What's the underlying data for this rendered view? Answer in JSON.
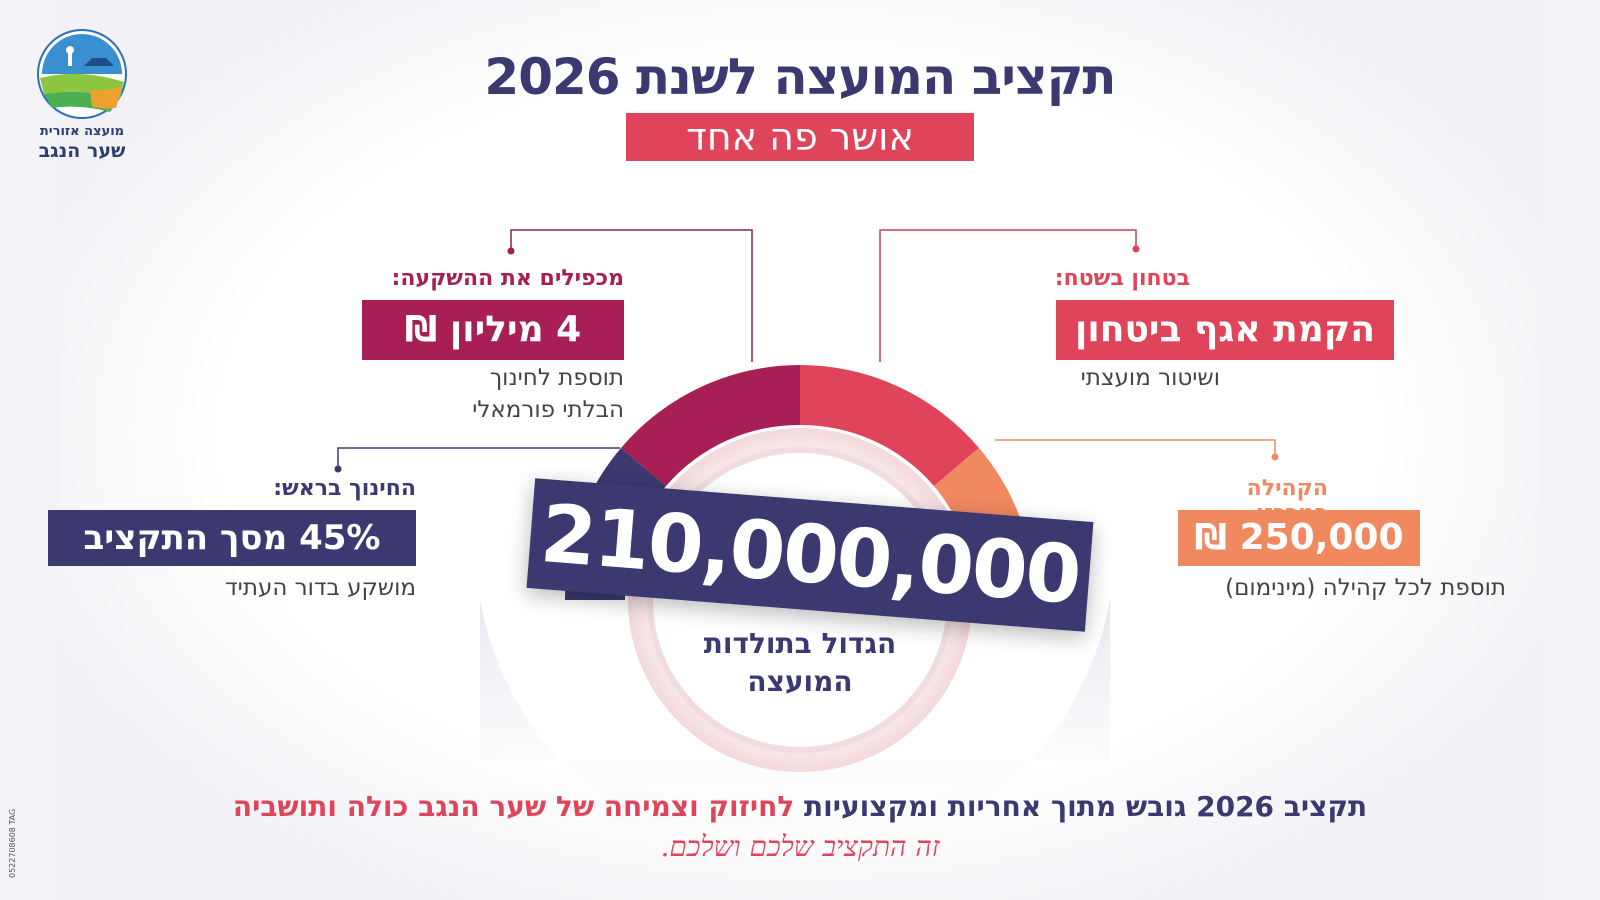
{
  "header": {
    "title": "תקציב המועצה לשנת 2026",
    "subtitle": "אושר פה אחד"
  },
  "logo": {
    "line1": "מועצה אזורית",
    "line2": "שער הנגב"
  },
  "callouts": {
    "security": {
      "label": "בטחון בשטח:",
      "value": "הקמת אגף ביטחון",
      "description": "ושיטור מועצתי",
      "color": "#e0445a"
    },
    "investment": {
      "label": "מכפילים את ההשקעה:",
      "value": "4 מיליון ₪",
      "description_line1": "תוספת לחינוך",
      "description_line2": "הבלתי פורמאלי",
      "color": "#a81f55"
    },
    "education": {
      "label": "החינוך בראש:",
      "value": "45% מסך התקציב",
      "description": "מושקע בדור העתיד",
      "color": "#3b3970"
    },
    "community": {
      "label": "הקהילה במרכז:",
      "value": "250,000 ₪",
      "description": "תוספת לכל קהילה (מינימום)",
      "color": "#f08860"
    }
  },
  "center": {
    "total": "210,000,000 ₪",
    "caption_line1": "הגדול בתולדות",
    "caption_line2": "המועצה"
  },
  "footer": {
    "line1_dark": "תקציב 2026 גובש מתוך אחריות ומקצועיות",
    "line1_red": "לחיזוק וצמיחה של שער הנגב כולה ותושביה",
    "line2": "זה התקציב שלכם ושלכם."
  },
  "side_tag": "0522708608 TAG"
}
